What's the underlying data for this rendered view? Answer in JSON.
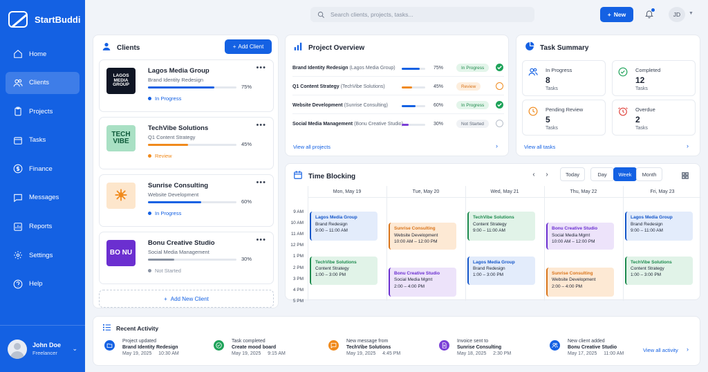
{
  "app": {
    "name": "StartBuddi"
  },
  "sidebar": {
    "items": [
      {
        "label": "Home",
        "icon": "home-icon"
      },
      {
        "label": "Clients",
        "icon": "users-icon"
      },
      {
        "label": "Projects",
        "icon": "clipboard-icon"
      },
      {
        "label": "Tasks",
        "icon": "calendar-icon"
      },
      {
        "label": "Finance",
        "icon": "dollar-icon"
      },
      {
        "label": "Messages",
        "icon": "message-icon"
      },
      {
        "label": "Reports",
        "icon": "chart-icon"
      },
      {
        "label": "Settings",
        "icon": "gear-icon"
      },
      {
        "label": "Help",
        "icon": "help-icon"
      }
    ],
    "active": "Clients",
    "user": {
      "name": "John Doe",
      "role": "Freelancer"
    }
  },
  "topbar": {
    "search_placeholder": "Search clients, projects, tasks...",
    "new_label": "New",
    "avatar_initials": "JD"
  },
  "clients": {
    "title": "Clients",
    "add_label": "Add Client",
    "add_new_label": "Add New Client",
    "items": [
      {
        "logo": "LAGOS MEDIA GROUP",
        "logo_bg": "#0f1524",
        "logo_fg": "#ffffff",
        "name": "Lagos Media Group",
        "project": "Brand Identity Redesign",
        "progress": 75,
        "progress_label": "75%",
        "status": "In Progress",
        "color": "#1461e3"
      },
      {
        "logo": "TECH VIBE",
        "logo_bg": "#a9e0c4",
        "logo_fg": "#0e5a3a",
        "name": "TechVibe Solutions",
        "project": "Q1 Content Strategy",
        "progress": 45,
        "progress_label": "45%",
        "status": "Review",
        "color": "#f08a1c"
      },
      {
        "logo": "☀",
        "logo_bg": "#fde6cc",
        "logo_fg": "#f08a1c",
        "name": "Sunrise Consulting",
        "project": "Website Development",
        "progress": 60,
        "progress_label": "60%",
        "status": "In Progress",
        "color": "#1461e3"
      },
      {
        "logo": "BO NU",
        "logo_bg": "#6b2fd0",
        "logo_fg": "#ffffff",
        "name": "Bonu Creative Studio",
        "project": "Social Media Management",
        "progress": 30,
        "progress_label": "30%",
        "status": "Not Started",
        "color": "#8a93a3"
      }
    ]
  },
  "overview": {
    "title": "Project Overview",
    "view_all": "View all projects",
    "rows": [
      {
        "name": "Brand Identity Redesign",
        "client": "(Lagos Media Group)",
        "progress": 75,
        "progress_label": "75%",
        "status": "In Progress",
        "bar": "#1461e3",
        "badge_bg": "#e3f5ea",
        "badge_fg": "#1f8a4c",
        "icon": "check-circle-icon"
      },
      {
        "name": "Q1 Content Strategy",
        "client": "(TechVibe Solutions)",
        "progress": 45,
        "progress_label": "45%",
        "status": "Review",
        "bar": "#f08a1c",
        "badge_bg": "#fdeedd",
        "badge_fg": "#d9741a",
        "icon": "clock-icon"
      },
      {
        "name": "Website Development",
        "client": "(Sunrise Consulting)",
        "progress": 60,
        "progress_label": "60%",
        "status": "In Progress",
        "bar": "#1461e3",
        "badge_bg": "#e3f5ea",
        "badge_fg": "#1f8a4c",
        "icon": "check-circle-icon"
      },
      {
        "name": "Social Media Management",
        "client": "(Bonu Creative Studio)",
        "progress": 30,
        "progress_label": "30%",
        "status": "Not Started",
        "bar": "#7a3fd6",
        "badge_bg": "#f0f2f5",
        "badge_fg": "#5a6475",
        "icon": "empty-circle-icon"
      }
    ]
  },
  "task_summary": {
    "title": "Task Summary",
    "view_all": "View all tasks",
    "boxes": [
      {
        "label": "In Progress",
        "count": "8",
        "sub": "Tasks",
        "icon": "users-icon",
        "color": "#1461e3"
      },
      {
        "label": "Completed",
        "count": "12",
        "sub": "Tasks",
        "icon": "check-circle-icon",
        "color": "#1fa35a"
      },
      {
        "label": "Pending Review",
        "count": "5",
        "sub": "Tasks",
        "icon": "clock-icon",
        "color": "#f08a1c"
      },
      {
        "label": "Overdue",
        "count": "2",
        "sub": "Tasks",
        "icon": "alarm-icon",
        "color": "#e0443e"
      }
    ]
  },
  "time_blocking": {
    "title": "Time Blocking",
    "today": "Today",
    "views": [
      "Day",
      "Week",
      "Month"
    ],
    "active_view": "Week",
    "days": [
      "Mon, May 19",
      "Tue, May 20",
      "Wed, May 21",
      "Thu, May 22",
      "Fri, May 23"
    ],
    "times": [
      "9 AM",
      "10 AM",
      "11 AM",
      "12 PM",
      "1 PM",
      "2 PM",
      "3 PM",
      "4 PM",
      "5 PM"
    ],
    "events": [
      {
        "day": 0,
        "start": 9,
        "end": 11.6,
        "title": "Lagos Media Group",
        "project": "Brand Redesign",
        "time": "9:00 – 11:00 AM",
        "bg": "#e3ecfb",
        "fg": "#1456c9"
      },
      {
        "day": 0,
        "start": 13,
        "end": 15.6,
        "title": "TechVibe Solutions",
        "project": "Content Strategy",
        "time": "1:00 – 3:00 PM",
        "bg": "#e1f3e8",
        "fg": "#1d8a4e"
      },
      {
        "day": 1,
        "start": 10,
        "end": 12.4,
        "title": "Sunrise Consulting",
        "project": "Website Development",
        "time": "10:00 AM – 12:00 PM",
        "bg": "#fde9d4",
        "fg": "#d9741a"
      },
      {
        "day": 1,
        "start": 14,
        "end": 16.6,
        "title": "Bonu Creative Studio",
        "project": "Social Media Mgmt",
        "time": "2:00 – 4:00 PM",
        "bg": "#ede3fa",
        "fg": "#6b2fd0"
      },
      {
        "day": 2,
        "start": 9,
        "end": 11.6,
        "title": "TechVibe Solutions",
        "project": "Content Strategy",
        "time": "9:00 – 11:00 AM",
        "bg": "#e1f3e8",
        "fg": "#1d8a4e"
      },
      {
        "day": 2,
        "start": 13,
        "end": 15.6,
        "title": "Lagos Media Group",
        "project": "Brand Redesign",
        "time": "1:00 – 3:00 PM",
        "bg": "#e3ecfb",
        "fg": "#1456c9"
      },
      {
        "day": 3,
        "start": 10,
        "end": 12.4,
        "title": "Bonu Creative Studio",
        "project": "Social Media Mgmt",
        "time": "10:00 AM – 12:00 PM",
        "bg": "#ede3fa",
        "fg": "#6b2fd0"
      },
      {
        "day": 3,
        "start": 14,
        "end": 16.6,
        "title": "Sunrise Consulting",
        "project": "Website Development",
        "time": "2:00 – 4:00 PM",
        "bg": "#fde9d4",
        "fg": "#d9741a"
      },
      {
        "day": 4,
        "start": 9,
        "end": 11.6,
        "title": "Lagos Media Group",
        "project": "Brand Redesign",
        "time": "9:00 – 11:00 AM",
        "bg": "#e3ecfb",
        "fg": "#1456c9"
      },
      {
        "day": 4,
        "start": 13,
        "end": 15.6,
        "title": "TechVibe Solutions",
        "project": "Content Strategy",
        "time": "1:00 – 3:00 PM",
        "bg": "#e1f3e8",
        "fg": "#1d8a4e"
      }
    ]
  },
  "activity": {
    "title": "Recent Activity",
    "view_all": "View all activity",
    "items": [
      {
        "label": "Project updated",
        "main": "Brand Identity Redesign",
        "time": "May 19, 2025     10:30 AM",
        "icon": "folder-icon",
        "color": "#1461e3"
      },
      {
        "label": "Task completed",
        "main": "Create mood board",
        "time": "May 19, 2025     9:15 AM",
        "icon": "check-circle-icon",
        "color": "#1fa35a"
      },
      {
        "label": "New message from",
        "main": "TechVibe Solutions",
        "time": "May 19, 2025     4:45 PM",
        "icon": "message-icon",
        "color": "#f08a1c"
      },
      {
        "label": "Invoice sent to",
        "main": "Sunrise Consulting",
        "time": "May 18, 2025     2:30 PM",
        "icon": "invoice-icon",
        "color": "#7a3fd6"
      },
      {
        "label": "New client added",
        "main": "Bonu Creative Studio",
        "time": "May 17, 2025     11:00 AM",
        "icon": "users-icon",
        "color": "#1461e3"
      }
    ]
  }
}
